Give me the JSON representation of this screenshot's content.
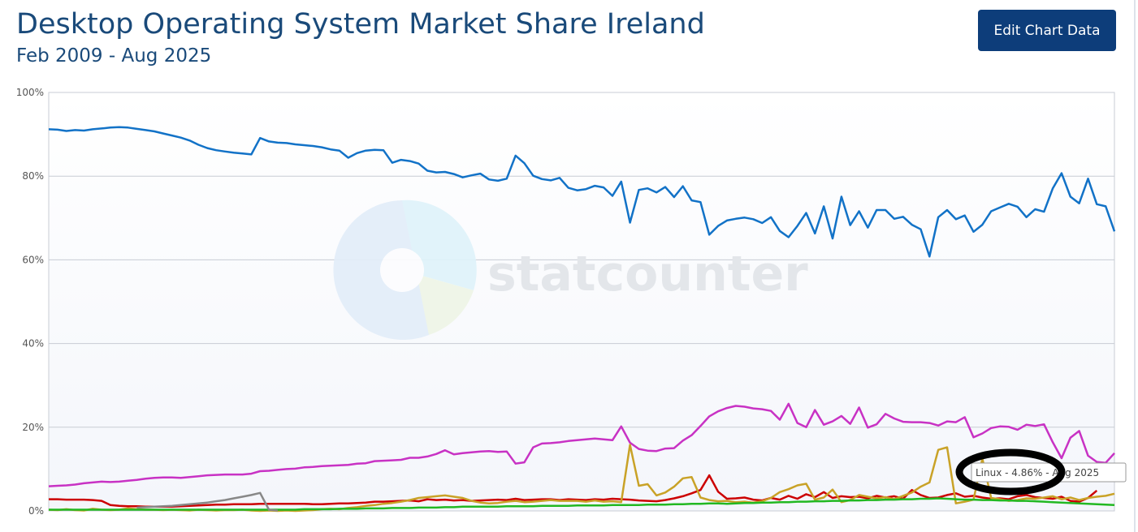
{
  "header": {
    "title": "Desktop Operating System Market Share Ireland",
    "subtitle": "Feb 2009 - Aug 2025",
    "edit_button": "Edit Chart Data"
  },
  "watermark": "statcounter",
  "tooltip": "Linux - 4.86% - Aug 2025",
  "chart_data": {
    "type": "line",
    "title": "Desktop Operating System Market Share Ireland",
    "subtitle": "Feb 2009 - Aug 2025",
    "x_start": "Feb 2009",
    "x_end": "Aug 2025",
    "ylim": [
      0,
      100
    ],
    "yticks": [
      "0%",
      "20%",
      "40%",
      "60%",
      "80%",
      "100%"
    ],
    "grid": true,
    "series": [
      {
        "color": "#1272c7",
        "width": 2.5,
        "values": [
          91.2,
          91.1,
          90.8,
          91.0,
          90.9,
          91.2,
          91.4,
          91.6,
          91.7,
          91.6,
          91.3,
          91.0,
          90.7,
          90.2,
          89.7,
          89.2,
          88.5,
          87.5,
          86.7,
          86.2,
          85.9,
          85.6,
          85.4,
          85.2,
          89.1,
          88.3,
          88.0,
          87.9,
          87.6,
          87.4,
          87.2,
          86.9,
          86.4,
          86.1,
          84.4,
          85.5,
          86.1,
          86.3,
          86.2,
          83.2,
          83.9,
          83.6,
          83.0,
          81.3,
          80.9,
          81.0,
          80.5,
          79.7,
          80.2,
          80.6,
          79.2,
          78.9,
          79.4,
          84.9,
          83.1,
          80.1,
          79.3,
          79.0,
          79.6,
          77.2,
          76.6,
          76.9,
          77.7,
          77.3,
          75.3,
          78.7,
          68.9,
          76.7,
          77.1,
          76.1,
          77.4,
          75.0,
          77.6,
          74.2,
          73.8,
          66.0,
          68.1,
          69.4,
          69.8,
          70.1,
          69.7,
          68.8,
          70.2,
          66.9,
          65.4,
          68.1,
          71.2,
          66.3,
          72.8,
          65.1,
          75.1,
          68.3,
          71.6,
          67.7,
          71.9,
          71.9,
          69.8,
          70.3,
          68.4,
          67.3,
          60.8,
          70.2,
          71.9,
          69.7,
          70.6,
          66.7,
          68.4,
          71.6,
          72.5,
          73.4,
          72.7,
          70.2,
          72.1,
          71.5,
          77.1,
          80.7,
          75.1,
          73.5,
          79.4,
          73.3,
          72.8,
          66.8
        ]
      },
      {
        "color": "#c832c4",
        "width": 2.5,
        "values": [
          5.9,
          6.0,
          6.1,
          6.3,
          6.6,
          6.8,
          7.0,
          6.9,
          7.0,
          7.2,
          7.4,
          7.7,
          7.9,
          8.0,
          8.0,
          7.9,
          8.1,
          8.3,
          8.5,
          8.6,
          8.7,
          8.7,
          8.7,
          8.9,
          9.5,
          9.6,
          9.8,
          10.0,
          10.1,
          10.4,
          10.5,
          10.7,
          10.8,
          10.9,
          11.0,
          11.3,
          11.4,
          11.9,
          12.0,
          12.1,
          12.2,
          12.7,
          12.7,
          13.0,
          13.6,
          14.5,
          13.5,
          13.8,
          14.0,
          14.2,
          14.3,
          14.1,
          14.2,
          11.3,
          11.6,
          15.2,
          16.1,
          16.2,
          16.4,
          16.7,
          16.9,
          17.1,
          17.3,
          17.1,
          16.9,
          20.2,
          16.3,
          14.8,
          14.4,
          14.3,
          14.9,
          15.0,
          16.8,
          18.1,
          20.3,
          22.6,
          23.8,
          24.6,
          25.1,
          24.9,
          24.5,
          24.3,
          23.9,
          21.8,
          25.6,
          21.0,
          20.0,
          24.1,
          20.6,
          21.4,
          22.7,
          20.8,
          24.7,
          19.9,
          20.7,
          23.2,
          22.1,
          21.3,
          21.2,
          21.2,
          21.0,
          20.4,
          21.4,
          21.2,
          22.4,
          17.6,
          18.5,
          19.8,
          20.2,
          20.1,
          19.4,
          20.6,
          20.3,
          20.7,
          16.4,
          12.6,
          17.5,
          19.1,
          13.2,
          11.7,
          11.5,
          13.8
        ]
      },
      {
        "color": "#cc0000",
        "width": 2.5,
        "values": [
          2.8,
          2.8,
          2.7,
          2.7,
          2.7,
          2.6,
          2.4,
          1.4,
          1.2,
          1.1,
          1.1,
          1.0,
          1.0,
          1.0,
          1.0,
          1.1,
          1.2,
          1.3,
          1.4,
          1.5,
          1.5,
          1.6,
          1.6,
          1.6,
          1.7,
          1.7,
          1.7,
          1.7,
          1.7,
          1.7,
          1.6,
          1.6,
          1.7,
          1.8,
          1.8,
          1.9,
          2.0,
          2.2,
          2.2,
          2.3,
          2.4,
          2.5,
          2.3,
          2.8,
          2.6,
          2.7,
          2.5,
          2.6,
          2.4,
          2.5,
          2.6,
          2.7,
          2.6,
          2.9,
          2.6,
          2.7,
          2.8,
          2.8,
          2.6,
          2.8,
          2.7,
          2.6,
          2.8,
          2.7,
          2.9,
          2.8,
          2.7,
          2.5,
          2.4,
          2.3,
          2.6,
          3.0,
          3.5,
          4.2,
          5.0,
          8.5,
          4.6,
          2.9,
          3.0,
          3.2,
          2.7,
          2.5,
          3.1,
          2.7,
          3.6,
          2.9,
          4.0,
          3.3,
          4.5,
          3.1,
          3.5,
          3.3,
          3.4,
          3.0,
          3.6,
          3.2,
          3.5,
          2.9,
          5.0,
          3.8,
          3.1,
          3.2,
          3.8,
          4.2,
          3.4,
          3.6,
          3.2,
          2.9,
          3.0,
          2.8,
          3.5,
          3.8,
          3.3,
          3.1,
          2.9,
          3.4,
          2.4,
          2.2,
          3.1,
          4.86
        ]
      },
      {
        "color": "#c9a227",
        "width": 2.5,
        "values": [
          0.3,
          0.2,
          0.4,
          0.2,
          0.1,
          0.5,
          0.3,
          0.2,
          0.3,
          0.6,
          0.4,
          0.3,
          0.3,
          0.2,
          0.3,
          0.2,
          0.1,
          0.3,
          0.2,
          0.1,
          0.2,
          0.2,
          0.3,
          0.1,
          0.0,
          0.1,
          0.0,
          0.1,
          0.0,
          0.1,
          0.2,
          0.4,
          0.5,
          0.4,
          0.7,
          0.9,
          1.2,
          1.4,
          1.7,
          1.9,
          2.2,
          2.6,
          3.1,
          3.3,
          3.5,
          3.7,
          3.4,
          3.1,
          2.4,
          2.0,
          1.8,
          1.9,
          2.2,
          2.4,
          2.1,
          2.2,
          2.4,
          2.6,
          2.4,
          2.4,
          2.4,
          2.2,
          2.5,
          2.2,
          2.3,
          2.1,
          15.8,
          6.0,
          6.4,
          3.7,
          4.4,
          5.8,
          7.8,
          8.1,
          3.2,
          2.6,
          2.3,
          2.4,
          2.1,
          2.2,
          2.0,
          2.3,
          3.1,
          4.5,
          5.2,
          6.1,
          6.5,
          2.7,
          3.2,
          5.1,
          2.1,
          2.6,
          3.8,
          3.4,
          3.0,
          3.3,
          2.8,
          3.6,
          4.4,
          5.8,
          6.8,
          14.6,
          15.2,
          1.8,
          2.2,
          2.7,
          12.5,
          3.1,
          2.8,
          2.4,
          2.6,
          3.0,
          2.9,
          3.2,
          3.5,
          2.8,
          3.2,
          2.6,
          3.1,
          3.4,
          3.6,
          4.1
        ]
      },
      {
        "color": "#22b822",
        "width": 2.5,
        "values": [
          0.3,
          0.3,
          0.3,
          0.3,
          0.3,
          0.3,
          0.3,
          0.3,
          0.3,
          0.3,
          0.3,
          0.3,
          0.3,
          0.3,
          0.3,
          0.3,
          0.3,
          0.3,
          0.3,
          0.3,
          0.3,
          0.3,
          0.3,
          0.3,
          0.3,
          0.3,
          0.3,
          0.3,
          0.3,
          0.4,
          0.4,
          0.4,
          0.4,
          0.5,
          0.5,
          0.5,
          0.6,
          0.6,
          0.6,
          0.7,
          0.7,
          0.7,
          0.8,
          0.8,
          0.8,
          0.9,
          0.9,
          1.0,
          1.0,
          1.0,
          1.0,
          1.0,
          1.1,
          1.1,
          1.1,
          1.1,
          1.2,
          1.2,
          1.2,
          1.2,
          1.3,
          1.3,
          1.3,
          1.3,
          1.4,
          1.4,
          1.4,
          1.4,
          1.5,
          1.5,
          1.5,
          1.6,
          1.6,
          1.7,
          1.7,
          1.8,
          1.8,
          1.7,
          1.8,
          1.9,
          1.9,
          2.0,
          2.0,
          2.1,
          2.1,
          2.2,
          2.2,
          2.3,
          2.3,
          2.4,
          2.4,
          2.5,
          2.5,
          2.6,
          2.6,
          2.7,
          2.7,
          2.8,
          2.8,
          2.9,
          2.9,
          3.0,
          2.9,
          2.8,
          2.7,
          2.7,
          2.6,
          2.6,
          2.5,
          2.5,
          2.4,
          2.4,
          2.3,
          2.2,
          2.1,
          2.0,
          1.9,
          1.8,
          1.7,
          1.6,
          1.5,
          1.4
        ]
      },
      {
        "color": "#888888",
        "width": 2.5,
        "start_index": 10,
        "values": [
          0.8,
          0.9,
          1.0,
          1.1,
          1.2,
          1.4,
          1.6,
          1.8,
          2.0,
          2.3,
          2.6,
          3.0,
          3.4,
          3.8,
          4.3,
          0.3,
          0.1
        ]
      }
    ]
  }
}
